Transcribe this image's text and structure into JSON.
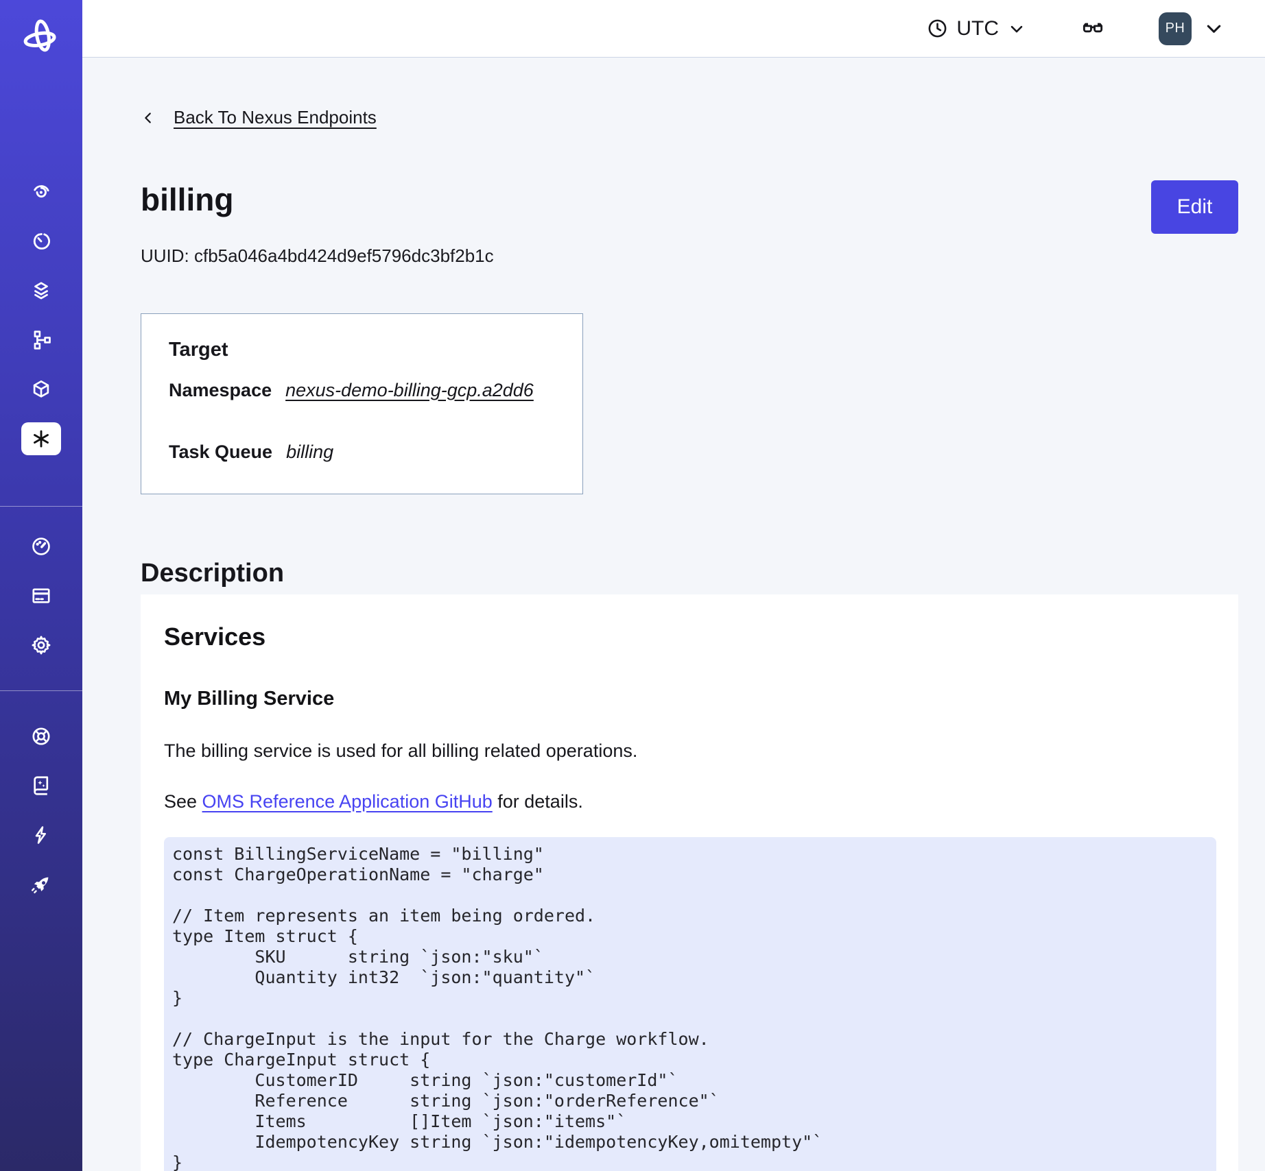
{
  "sidebar": {
    "icons": [
      "temporal-logo",
      "spiral-eye-icon",
      "timer-icon",
      "layers-icon",
      "workflow-graph-icon",
      "cube-icon",
      "asterisk-nexus-icon",
      "speedometer-icon",
      "credit-card-icon",
      "gear-icon",
      "life-ring-icon",
      "book-sparkle-icon",
      "lightning-icon",
      "rocket-icon"
    ],
    "active_item": "nexus"
  },
  "topbar": {
    "timezone": "UTC",
    "avatar_initials": "PH"
  },
  "back_link": "Back To Nexus Endpoints",
  "header": {
    "title": "billing",
    "uuid_line": "UUID: cfb5a046a4bd424d9ef5796dc3bf2b1c",
    "edit_label": "Edit"
  },
  "target": {
    "heading": "Target",
    "namespace_label": "Namespace",
    "namespace_value": "nexus-demo-billing-gcp.a2dd6",
    "task_queue_label": "Task Queue",
    "task_queue_value": "billing"
  },
  "description": {
    "heading": "Description",
    "services_heading": "Services",
    "service_name": "My Billing Service",
    "paragraph1": "The billing service is used for all billing related operations.",
    "see_prefix": "See ",
    "link_text": "OMS Reference Application GitHub",
    "see_suffix": " for details.",
    "code_lines": [
      "const BillingServiceName = \"billing\"",
      "const ChargeOperationName = \"charge\"",
      "",
      "// Item represents an item being ordered.",
      "type Item struct {",
      "        SKU      string `json:\"sku\"`",
      "        Quantity int32  `json:\"quantity\"`",
      "}",
      "",
      "// ChargeInput is the input for the Charge workflow.",
      "type ChargeInput struct {",
      "        CustomerID     string `json:\"customerId\"`",
      "        Reference      string `json:\"orderReference\"`",
      "        Items          []Item `json:\"items\"`",
      "        IdempotencyKey string `json:\"idempotencyKey,omitempty\"`",
      "}"
    ]
  },
  "colors": {
    "accent": "#4845e2",
    "link": "#4743f2",
    "sidebar_top": "#4c48d9",
    "sidebar_bottom": "#2b2968",
    "code_background": "#e5eafc",
    "avatar_background": "#35495d",
    "page_background": "#f4f6fa",
    "card_border": "#8aa0bc"
  }
}
